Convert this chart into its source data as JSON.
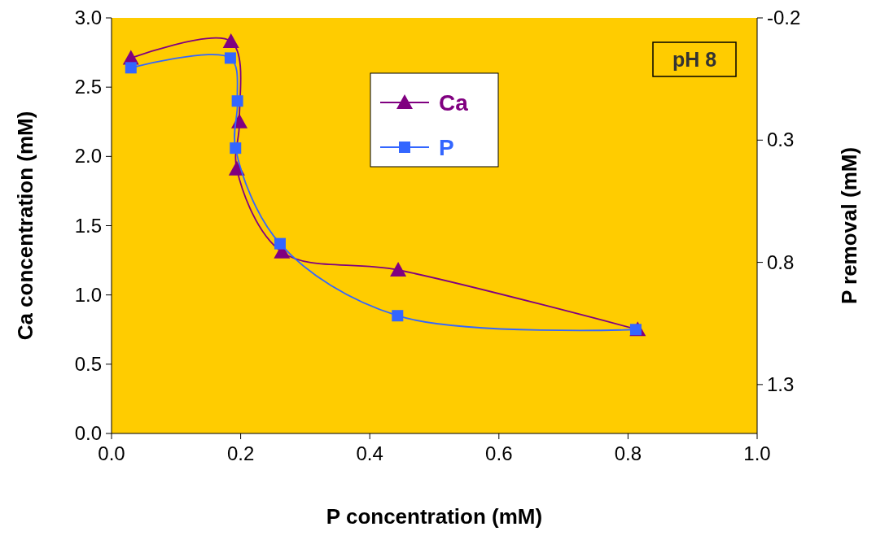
{
  "chart_data": {
    "type": "line",
    "xlabel": "P concentration (mM)",
    "ylabel": "Ca concentration (mM)",
    "y2label": "P removal (mM)",
    "annotations": [
      "pH 8"
    ],
    "xlim": [
      0,
      1
    ],
    "xticks": [
      {
        "value": 0,
        "label": "0.0"
      },
      0.2,
      0.4,
      0.6,
      0.8,
      {
        "value": 1,
        "label": "1.0"
      }
    ],
    "ylim": [
      0,
      3
    ],
    "yticks": [
      {
        "value": 0,
        "label": "0.0"
      },
      0.5,
      {
        "value": 1,
        "label": "1.0"
      },
      1.5,
      {
        "value": 2,
        "label": "2.0"
      },
      2.5,
      {
        "value": 3,
        "label": "3.0"
      }
    ],
    "y2lim": [
      1.5,
      -0.2
    ],
    "y2ticks": [
      -0.2,
      0.3,
      0.8,
      1.3
    ],
    "legend": "top",
    "grid": false,
    "series": [
      {
        "name": "Ca",
        "color": "#800080",
        "marker": "triangle",
        "x": [
          0.03,
          0.185,
          0.198,
          0.194,
          0.264,
          0.444,
          0.815
        ],
        "values": [
          2.71,
          2.83,
          2.25,
          1.91,
          1.31,
          1.18,
          0.75
        ]
      },
      {
        "name": "P",
        "color": "#3366ff",
        "marker": "square",
        "x": [
          0.03,
          0.184,
          0.195,
          0.192,
          0.261,
          0.443,
          0.812
        ],
        "values": [
          2.64,
          2.71,
          2.4,
          2.06,
          1.37,
          0.85,
          0.75
        ]
      }
    ]
  }
}
